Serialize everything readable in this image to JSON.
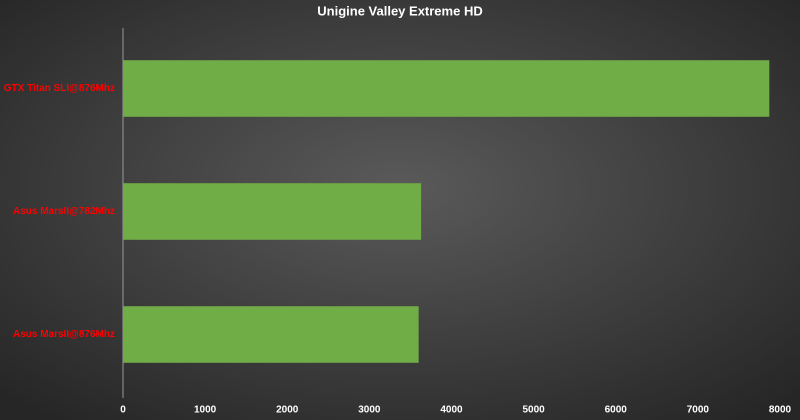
{
  "chart_data": {
    "type": "hbar",
    "title": "Unigine Valley Extreme HD",
    "categories": [
      "GTX Titan SLI@876Mhz",
      "Asus MarsII@782Mhz",
      "Asus MarsII@876Mhz"
    ],
    "values": [
      7870,
      3630,
      3600
    ],
    "color": "#70ad47",
    "label_color": "#ff0000",
    "xlim": [
      0,
      8000
    ],
    "xticks": [
      0,
      1000,
      2000,
      3000,
      4000,
      5000,
      6000,
      7000,
      8000
    ],
    "grid": false
  }
}
